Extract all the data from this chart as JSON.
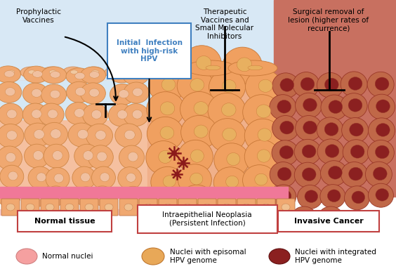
{
  "bg_color": "#ffffff",
  "top_bg_color": "#D8E8F5",
  "normal_cell_color": "#F0A870",
  "normal_cell_border": "#D88858",
  "normal_nucleus_color": "#F0C8A0",
  "neoplasia_cell_color": "#F0A060",
  "neoplasia_cell_border": "#D07840",
  "neoplasia_nucleus_color": "#E8B870",
  "cancer_cell_color": "#C06848",
  "cancer_cell_border": "#A04828",
  "cancer_nucleus_color": "#8B2020",
  "basement_color": "#F07898",
  "basement_light_color": "#F8D0D8",
  "label_box_normal": "Normal tissue",
  "label_box_neoplasia": "Intraepithelial Neoplasia\n(Persistent Infection)",
  "label_box_cancer": "Invasive Cancer",
  "legend_normal_nuclei": "Normal nuclei",
  "legend_episomal": "Nuclei with episomal\nHPV genome",
  "legend_integrated": "Nuclei with integrated\nHPV genome",
  "annotation_prophylactic": "Prophylactic\nVaccines",
  "annotation_initial": "Initial  Infection\nwith high-risk\nHPV",
  "annotation_therapeutic": "Therapeutic\nVaccines and\nSmall Molecular\nInhibitors",
  "annotation_surgical": "Surgical removal of\nlesion (higher rates of\nrecurrence)",
  "box_border_color": "#C04040",
  "initial_box_color": "#4080C0",
  "arrow_color": "#000000",
  "virus_color": "#8B1A1A"
}
